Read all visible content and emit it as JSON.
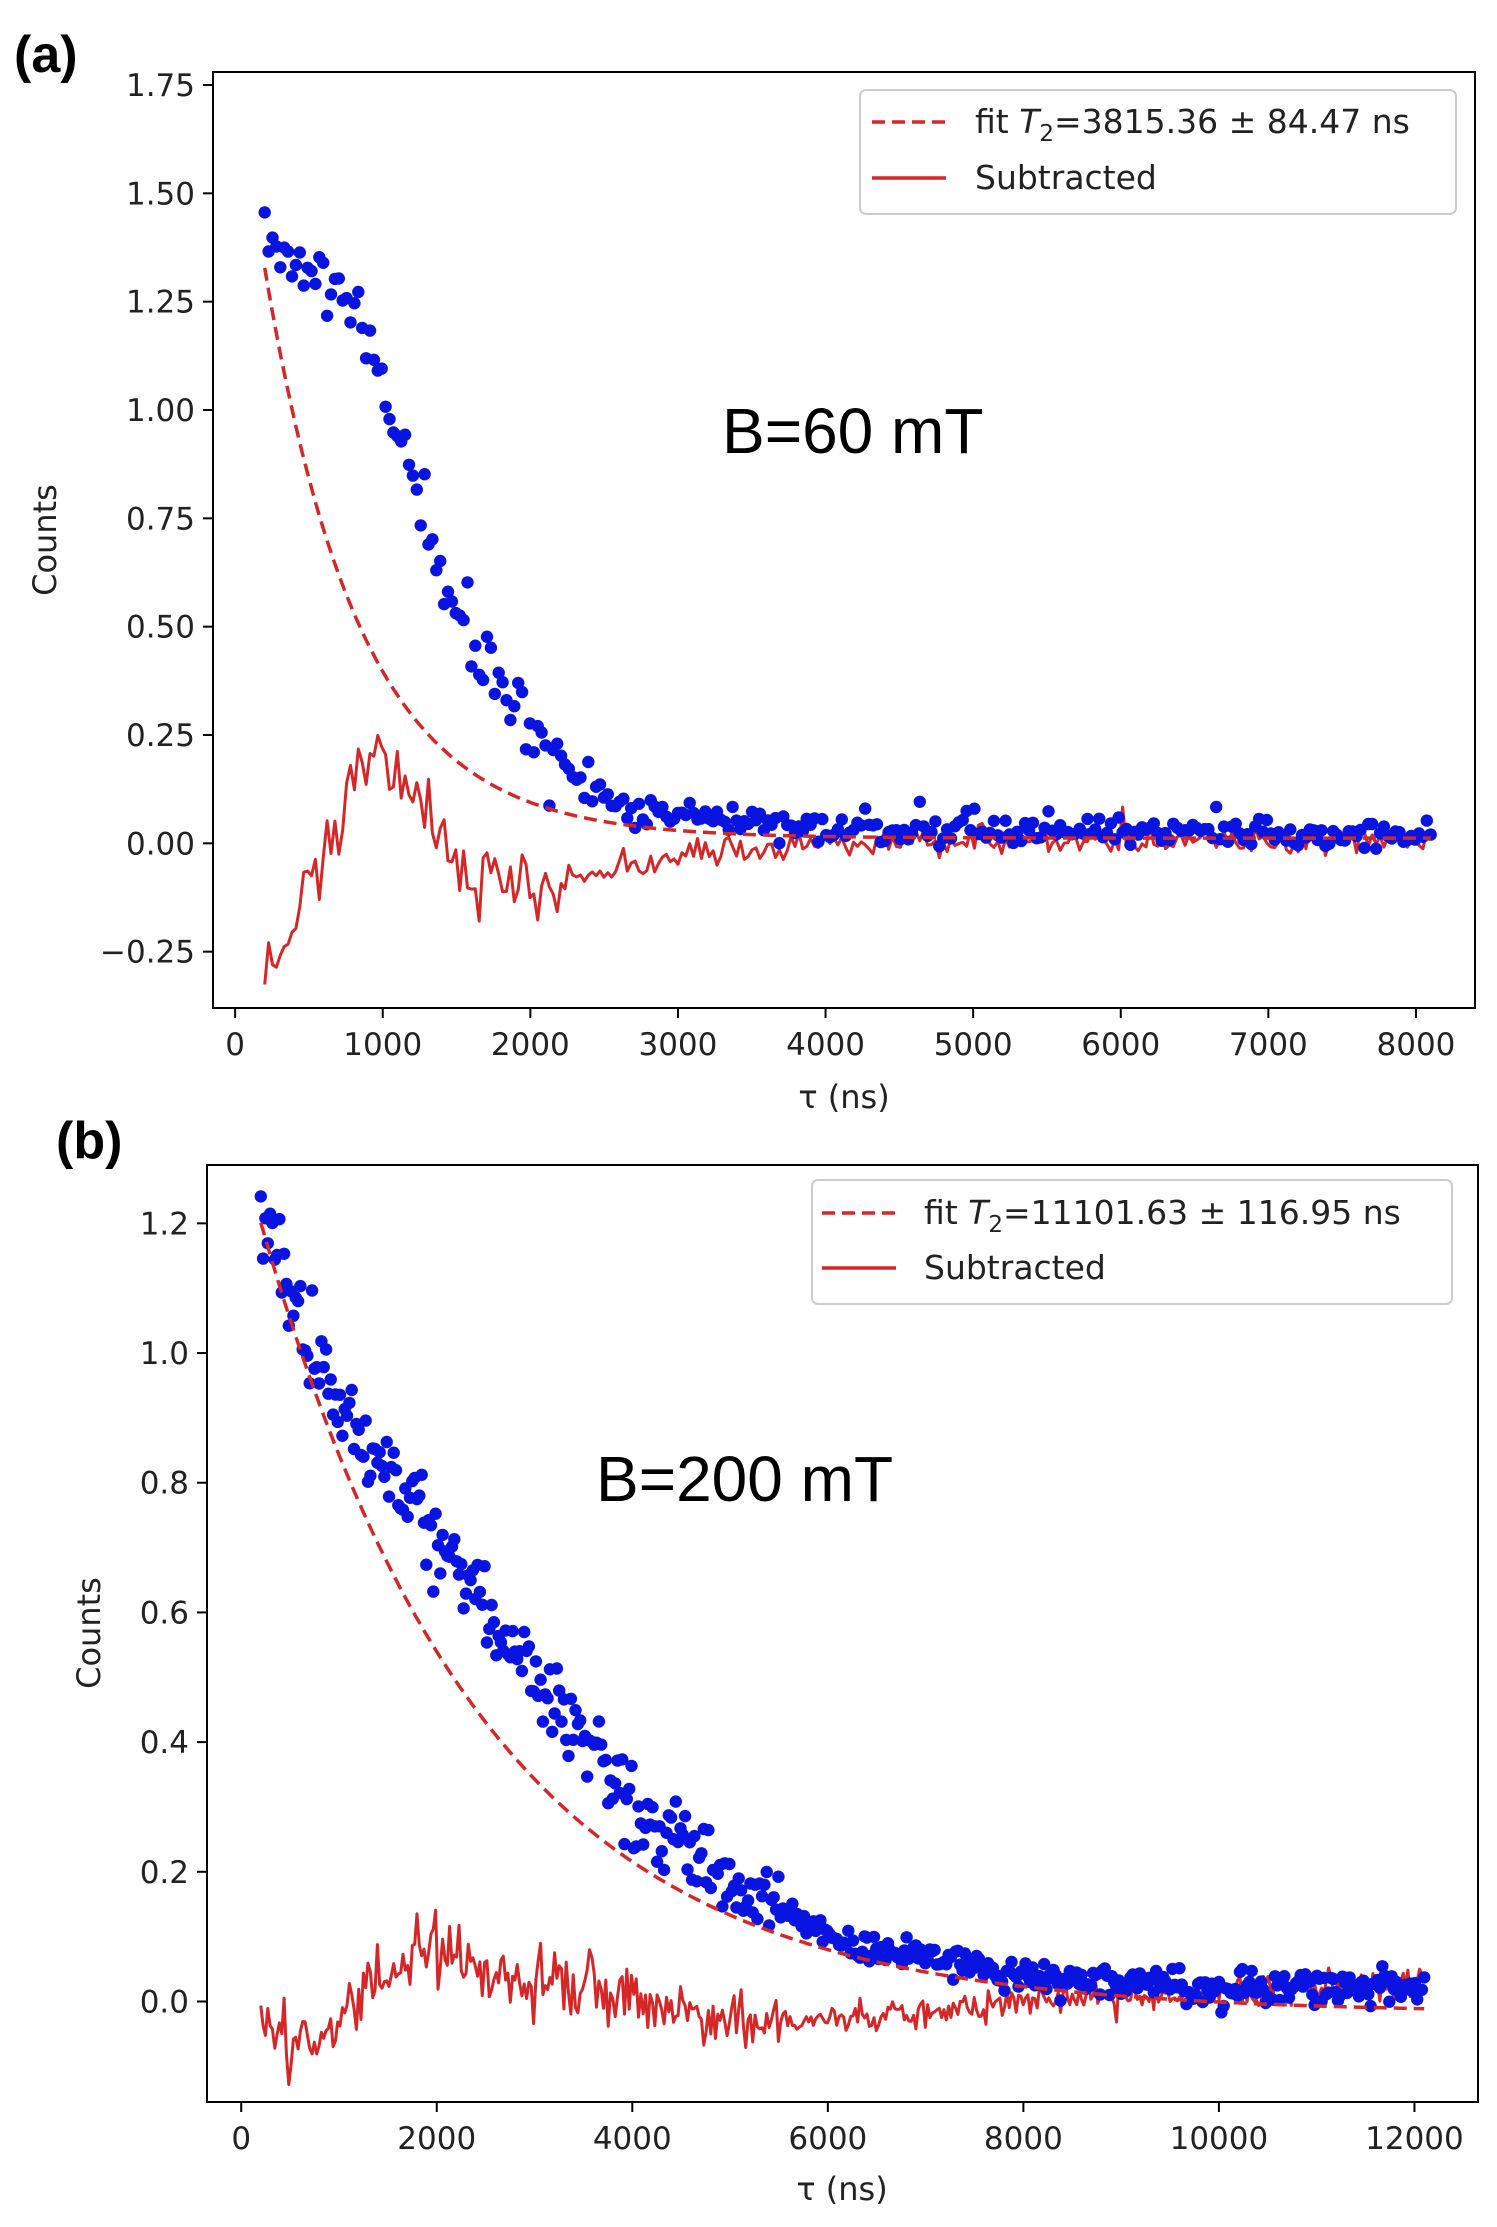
{
  "chart_data": [
    {
      "type": "scatter",
      "panel_label": "(a)",
      "annotation": "B=60 mT",
      "xlabel": "τ (ns)",
      "ylabel": "Counts",
      "xlim": [
        -150,
        8400
      ],
      "ylim": [
        -0.38,
        1.78
      ],
      "xticks": [
        0,
        1000,
        2000,
        3000,
        4000,
        5000,
        6000,
        7000,
        8000
      ],
      "xtick_labels": [
        "0",
        "1000",
        "2000",
        "3000",
        "4000",
        "5000",
        "6000",
        "7000",
        "8000"
      ],
      "yticks": [
        -0.25,
        0,
        0.25,
        0.5,
        0.75,
        1.0,
        1.25,
        1.5,
        1.75
      ],
      "ytick_labels": [
        "−0.25",
        "0.00",
        "0.25",
        "0.50",
        "0.75",
        "1.00",
        "1.25",
        "1.50",
        "1.75"
      ],
      "legend": {
        "position": "top-right",
        "fit_prefix": "fit ",
        "fit_symbol": "T",
        "fit_subscript": "2",
        "fit_value": "=3815.36 ± 84.47 ns",
        "subtracted_label": "Subtracted"
      },
      "series": [
        {
          "name": "data",
          "style": "blue dots",
          "color": "#0a14e0",
          "x_start": 200,
          "x_end": 8100,
          "n": 300,
          "values_summary": "decaying from ~1.40 at 200 ns to ~0.02 beyond 4000 ns; bump near 800-1200 ns",
          "key_points": [
            [
              200,
              1.4
            ],
            [
              400,
              1.36
            ],
            [
              800,
              1.2
            ],
            [
              1000,
              1.05
            ],
            [
              1200,
              0.85
            ],
            [
              1500,
              0.52
            ],
            [
              2000,
              0.25
            ],
            [
              2500,
              0.1
            ],
            [
              3000,
              0.06
            ],
            [
              4000,
              0.03
            ],
            [
              6000,
              0.03
            ],
            [
              8100,
              0.02
            ]
          ]
        },
        {
          "name": "fit",
          "style": "dashed red",
          "color": "#d62728",
          "model": "A*exp(-t/T2)+C",
          "A": 1.79,
          "T2": 3815.36,
          "decay_ns": 650,
          "C": 0.012,
          "x_start": 200,
          "x_end": 8100
        },
        {
          "name": "Subtracted",
          "style": "solid red",
          "color": "#d62728",
          "x_start": 200,
          "x_end": 8100,
          "n": 300,
          "key_points": [
            [
              200,
              -0.29
            ],
            [
              500,
              -0.1
            ],
            [
              900,
              0.22
            ],
            [
              1200,
              0.1
            ],
            [
              1600,
              -0.08
            ],
            [
              2000,
              -0.1
            ],
            [
              2500,
              -0.07
            ],
            [
              3000,
              -0.03
            ],
            [
              4000,
              0.0
            ],
            [
              6000,
              0.01
            ],
            [
              8100,
              0.01
            ]
          ]
        }
      ]
    },
    {
      "type": "scatter",
      "panel_label": "(b)",
      "annotation": "B=200 mT",
      "xlabel": "τ (ns)",
      "ylabel": "Counts",
      "xlim": [
        -350,
        12650
      ],
      "ylim": [
        -0.155,
        1.29
      ],
      "xticks": [
        0,
        2000,
        4000,
        6000,
        8000,
        10000,
        12000
      ],
      "xtick_labels": [
        "0",
        "2000",
        "4000",
        "6000",
        "8000",
        "10000",
        "12000"
      ],
      "yticks": [
        0.0,
        0.2,
        0.4,
        0.6,
        0.8,
        1.0,
        1.2
      ],
      "ytick_labels": [
        "0.0",
        "0.2",
        "0.4",
        "0.6",
        "0.8",
        "1.0",
        "1.2"
      ],
      "legend": {
        "position": "top-right",
        "fit_prefix": "fit ",
        "fit_symbol": "T",
        "fit_subscript": "2",
        "fit_value": "=11101.63 ± 116.95 ns",
        "subtracted_label": "Subtracted"
      },
      "series": [
        {
          "name": "data",
          "style": "blue dots",
          "color": "#0a14e0",
          "x_start": 200,
          "x_end": 12100,
          "n": 500,
          "values_summary": "decaying from ~1.21 at 200 ns to ~0.02 beyond 9000 ns",
          "key_points": [
            [
              200,
              1.21
            ],
            [
              1000,
              0.92
            ],
            [
              2000,
              0.72
            ],
            [
              3000,
              0.5
            ],
            [
              4000,
              0.3
            ],
            [
              5000,
              0.18
            ],
            [
              6000,
              0.1
            ],
            [
              8000,
              0.04
            ],
            [
              10000,
              0.02
            ],
            [
              12100,
              0.02
            ]
          ]
        },
        {
          "name": "fit",
          "style": "dashed red",
          "color": "#d62728",
          "model": "A*exp(-t/T2)+C",
          "A": 1.33,
          "T2": 11101.63,
          "decay_ns": 2300,
          "C": -0.018,
          "x_start": 200,
          "x_end": 12100
        },
        {
          "name": "Subtracted",
          "style": "solid red",
          "color": "#d62728",
          "x_start": 200,
          "x_end": 12100,
          "n": 500,
          "key_points": [
            [
              200,
              -0.02
            ],
            [
              700,
              -0.08
            ],
            [
              1200,
              0.02
            ],
            [
              1800,
              0.08
            ],
            [
              2500,
              0.05
            ],
            [
              3500,
              0.02
            ],
            [
              4500,
              -0.02
            ],
            [
              6000,
              -0.03
            ],
            [
              8000,
              0.0
            ],
            [
              10000,
              0.02
            ],
            [
              12100,
              0.03
            ]
          ]
        }
      ]
    }
  ]
}
